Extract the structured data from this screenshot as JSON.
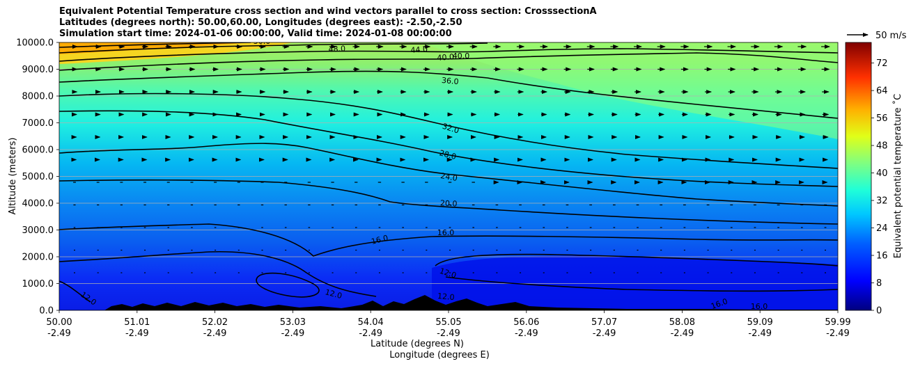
{
  "figure": {
    "title_lines": [
      "Equivalent Potential Temperature cross section and wind vectors parallel to cross section: CrosssectionA",
      "Latitudes (degrees north): 50.00,60.00, Longitudes (degrees east): -2.50,-2.50",
      "Simulation start time: 2024-01-06 00:00:00, Valid time: 2024-01-08 00:00:00"
    ]
  },
  "chart_data": {
    "type": "heatmap",
    "ylabel": "Altitude (meters)",
    "xlabel_lines": [
      "Latitude (degrees N)",
      "Longitude (degrees E)"
    ],
    "ylim": [
      0,
      10000
    ],
    "y_ticks": [
      "0.0",
      "1000.0",
      "2000.0",
      "3000.0",
      "4000.0",
      "5000.0",
      "6000.0",
      "7000.0",
      "8000.0",
      "9000.0",
      "10000.0"
    ],
    "x_ticks_lat": [
      "50.00",
      "51.01",
      "52.02",
      "53.03",
      "54.04",
      "55.05",
      "56.06",
      "57.07",
      "58.08",
      "59.09",
      "59.99"
    ],
    "x_ticks_lon": [
      "-2.49",
      "-2.49",
      "-2.49",
      "-2.49",
      "-2.49",
      "-2.49",
      "-2.49",
      "-2.49",
      "-2.49",
      "-2.49",
      "-2.49"
    ],
    "grid": "horizontal",
    "colorbar": {
      "label": "Equivalent potential temperature ˚C",
      "ticks": [
        "0",
        "8",
        "16",
        "24",
        "32",
        "40",
        "48",
        "56",
        "64",
        "72"
      ],
      "range": [
        0,
        78
      ]
    },
    "quiver_key": "50 m/s",
    "contour_labels": [
      "50.0",
      "48.0",
      "44.0",
      "40.0",
      "40.0",
      "36.0",
      "32.0",
      "28.0",
      "24.0",
      "20.0",
      "16.0",
      "16.0",
      "12.0",
      "12.0",
      "12.0",
      "12.0",
      "16.0",
      "16.0"
    ],
    "contour_levels": [
      12,
      16,
      20,
      24,
      28,
      32,
      36,
      40,
      44,
      48,
      50
    ]
  }
}
